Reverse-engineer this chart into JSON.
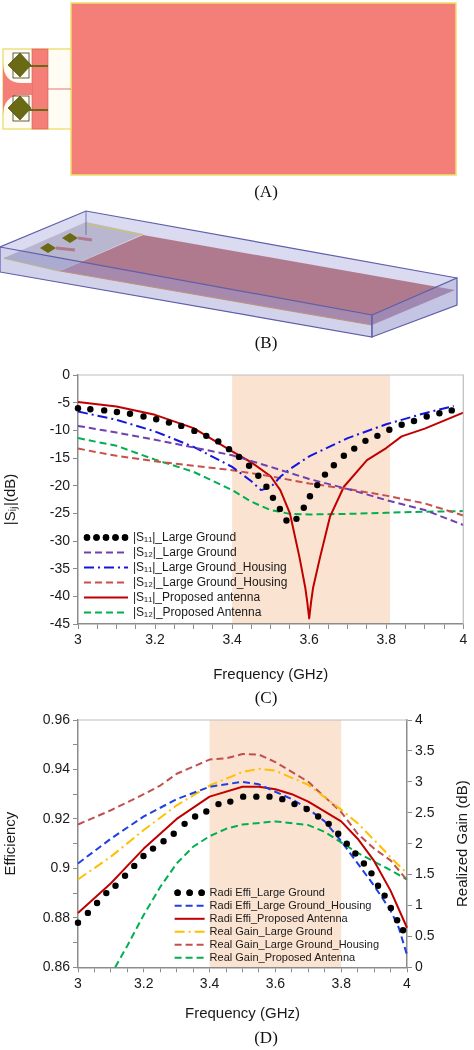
{
  "chart_data": [
    {
      "type": "other",
      "annotations": [
        "(A)"
      ]
    },
    {
      "type": "other",
      "annotations": [
        "(B)"
      ]
    },
    {
      "type": "line",
      "xlabel": "Frequency (GHz)",
      "ylabel": "|Sᵢⱼ|(dB)",
      "xlim": [
        3,
        4
      ],
      "xticks": [
        3,
        {
          "value": 3.05,
          "label": null
        },
        {
          "value": 3.1,
          "label": null
        },
        {
          "value": 3.15,
          "label": null
        },
        3.2,
        {
          "value": 3.25,
          "label": null
        },
        {
          "value": 3.3,
          "label": null
        },
        {
          "value": 3.35,
          "label": null
        },
        3.4,
        {
          "value": 3.45,
          "label": null
        },
        {
          "value": 3.5,
          "label": null
        },
        {
          "value": 3.55,
          "label": null
        },
        3.6,
        {
          "value": 3.65,
          "label": null
        },
        {
          "value": 3.7,
          "label": null
        },
        {
          "value": 3.75,
          "label": null
        },
        3.8,
        {
          "value": 3.85,
          "label": null
        },
        {
          "value": 3.9,
          "label": null
        },
        {
          "value": 3.95,
          "label": null
        },
        4
      ],
      "ylim": [
        -45,
        0
      ],
      "yticks": [
        -45,
        -40,
        -35,
        -30,
        -25,
        -20,
        -15,
        -10,
        -5,
        0
      ],
      "grid": false,
      "legend": "bottom left",
      "bands": [
        {
          "axis": "x",
          "from": 3.4,
          "to": 3.81,
          "color": "#fbe3d2"
        }
      ],
      "annotations": [
        "(C)"
      ],
      "series": [
        {
          "name": "|S₁₁|_Large Ground",
          "type": "scatter",
          "marker": "circle",
          "color": "#000000",
          "x": [
            3.0,
            3.032,
            3.068,
            3.101,
            3.135,
            3.17,
            3.203,
            3.236,
            3.268,
            3.302,
            3.333,
            3.364,
            3.392,
            3.418,
            3.444,
            3.468,
            3.489,
            3.506,
            3.524,
            3.541,
            3.567,
            3.586,
            3.602,
            3.621,
            3.641,
            3.664,
            3.69,
            3.717,
            3.746,
            3.777,
            3.808,
            3.84,
            3.872,
            3.905,
            3.938,
            3.97
          ],
          "values": [
            -6.0,
            -6.2,
            -6.4,
            -6.7,
            -7.0,
            -7.5,
            -8.0,
            -8.6,
            -9.2,
            -10.1,
            -11.0,
            -12.0,
            -13.4,
            -14.8,
            -16.4,
            -18.2,
            -20.2,
            -22.2,
            -24.2,
            -26.3,
            -26.0,
            -24.0,
            -21.9,
            -19.9,
            -18.0,
            -16.3,
            -14.6,
            -13.3,
            -11.9,
            -11.0,
            -9.9,
            -9.0,
            -8.3,
            -7.5,
            -6.9,
            -6.4
          ]
        },
        {
          "name": "|S₁₂|_Large Ground",
          "color": "#7040b0",
          "line_style": "dashed",
          "x": [
            3,
            3.1,
            3.2,
            3.3,
            3.4,
            3.5,
            3.6,
            3.7,
            3.8,
            3.9,
            4
          ],
          "values": [
            -9.2,
            -10.4,
            -11.7,
            -13.1,
            -14.5,
            -16.6,
            -18.8,
            -20.6,
            -22.6,
            -24.4,
            -27.1
          ]
        },
        {
          "name": "|S₁₁|_Large Ground_Housing",
          "color": "#1515e0",
          "line_style": "dashdot",
          "x": [
            3,
            3.1,
            3.2,
            3.3,
            3.4,
            3.45,
            3.475,
            3.5,
            3.525,
            3.55,
            3.6,
            3.7,
            3.8,
            3.9,
            3.975
          ],
          "values": [
            -6.6,
            -8.1,
            -10.2,
            -13.0,
            -16.6,
            -19.2,
            -20.8,
            -20.3,
            -18.4,
            -17.0,
            -14.7,
            -11.4,
            -8.9,
            -6.9,
            -5.6
          ]
        },
        {
          "name": "|S₁₂|_Large Ground_Housing",
          "color": "#c8504b",
          "line_style": "dashed",
          "x": [
            3,
            3.1,
            3.2,
            3.3,
            3.4,
            3.5,
            3.6,
            3.7,
            3.8,
            3.9,
            4
          ],
          "values": [
            -13.3,
            -14.6,
            -15.6,
            -16.4,
            -17.2,
            -18.3,
            -19.6,
            -20.6,
            -21.8,
            -23.2,
            -25.4
          ]
        },
        {
          "name": "|S₁₁|_Proposed antenna",
          "color": "#c00000",
          "line_style": "solid",
          "x": [
            3,
            3.1,
            3.2,
            3.3,
            3.4,
            3.45,
            3.5,
            3.525,
            3.55,
            3.575,
            3.59,
            3.595,
            3.6,
            3.605,
            3.61,
            3.628,
            3.654,
            3.69,
            3.75,
            3.8,
            3.84,
            3.9,
            4
          ],
          "values": [
            -4.9,
            -5.7,
            -7.2,
            -9.6,
            -13.8,
            -15.8,
            -18.3,
            -20.8,
            -25.0,
            -33.0,
            -38.5,
            -41.0,
            -44.0,
            -41.0,
            -38.5,
            -33.0,
            -25.6,
            -20.2,
            -15.4,
            -13.2,
            -11.1,
            -9.7,
            -6.8
          ]
        },
        {
          "name": "|S₁₂|_Proposed Antenna",
          "color": "#00b050",
          "line_style": "dashed",
          "x": [
            3,
            3.1,
            3.2,
            3.3,
            3.4,
            3.45,
            3.5,
            3.55,
            3.6,
            3.7,
            3.8,
            3.9,
            4
          ],
          "values": [
            -11.4,
            -12.8,
            -15.3,
            -17.5,
            -20.8,
            -22.9,
            -24.4,
            -25.1,
            -25.2,
            -25.1,
            -24.9,
            -24.7,
            -24.6
          ]
        }
      ]
    },
    {
      "type": "line",
      "xlabel": "Frequency (GHz)",
      "ylabel": "Efficiency",
      "y2label": "Realized Gain (dB)",
      "xlim": [
        3,
        4
      ],
      "xticks": [
        3,
        {
          "value": 3.05,
          "label": null
        },
        {
          "value": 3.1,
          "label": null
        },
        {
          "value": 3.15,
          "label": null
        },
        3.2,
        {
          "value": 3.25,
          "label": null
        },
        {
          "value": 3.3,
          "label": null
        },
        {
          "value": 3.35,
          "label": null
        },
        3.4,
        {
          "value": 3.45,
          "label": null
        },
        {
          "value": 3.5,
          "label": null
        },
        {
          "value": 3.55,
          "label": null
        },
        3.6,
        {
          "value": 3.65,
          "label": null
        },
        {
          "value": 3.7,
          "label": null
        },
        {
          "value": 3.75,
          "label": null
        },
        3.8,
        {
          "value": 3.85,
          "label": null
        },
        {
          "value": 3.9,
          "label": null
        },
        {
          "value": 3.95,
          "label": null
        },
        4
      ],
      "ylim": [
        0.86,
        0.96
      ],
      "yticks": [
        0.86,
        {
          "value": 0.87,
          "label": null
        },
        0.88,
        {
          "value": 0.89,
          "label": null
        },
        0.9,
        {
          "value": 0.91,
          "label": null
        },
        0.92,
        {
          "value": 0.93,
          "label": null
        },
        0.94,
        {
          "value": 0.95,
          "label": null
        },
        0.96
      ],
      "y2lim": [
        0,
        4
      ],
      "y2ticks": [
        0,
        0.5,
        1,
        1.5,
        2,
        2.5,
        3,
        3.5,
        4
      ],
      "grid": false,
      "legend": "bottom right",
      "bands": [
        {
          "axis": "x",
          "from": 3.4,
          "to": 3.8,
          "color": "#fbe3d2"
        }
      ],
      "annotations": [
        "(D)"
      ],
      "series": [
        {
          "name": "Radi Effi_Large Ground",
          "type": "scatter",
          "marker": "circle",
          "color": "#000000",
          "x": [
            3.0,
            3.03,
            3.058,
            3.086,
            3.114,
            3.143,
            3.171,
            3.199,
            3.228,
            3.26,
            3.291,
            3.324,
            3.356,
            3.39,
            3.427,
            3.463,
            3.502,
            3.542,
            3.582,
            3.621,
            3.658,
            3.695,
            3.73,
            3.762,
            3.791,
            3.817,
            3.843,
            3.869,
            3.892,
            3.912,
            3.932,
            3.951,
            3.97,
            3.988
          ],
          "values": [
            0.878,
            0.882,
            0.886,
            0.89,
            0.893,
            0.897,
            0.901,
            0.905,
            0.908,
            0.911,
            0.914,
            0.918,
            0.921,
            0.923,
            0.926,
            0.927,
            0.929,
            0.929,
            0.929,
            0.928,
            0.926,
            0.924,
            0.921,
            0.918,
            0.914,
            0.91,
            0.906,
            0.902,
            0.898,
            0.893,
            0.889,
            0.884,
            0.879,
            0.875
          ]
        },
        {
          "name": "Radi Effi_Large Ground_Housing",
          "color": "#1f3fe0",
          "line_style": "dashed",
          "x": [
            3,
            3.1,
            3.2,
            3.3,
            3.4,
            3.5,
            3.55,
            3.6,
            3.65,
            3.7,
            3.75,
            3.8,
            3.85,
            3.9,
            3.95,
            3.975,
            4
          ],
          "values": [
            0.902,
            0.912,
            0.921,
            0.928,
            0.933,
            0.935,
            0.934,
            0.931,
            0.928,
            0.924,
            0.919,
            0.911,
            0.902,
            0.893,
            0.883,
            0.876,
            0.865
          ]
        },
        {
          "name": "Radi Effi_Proposed Antenna",
          "color": "#c00000",
          "line_style": "solid",
          "x": [
            3,
            3.1,
            3.15,
            3.2,
            3.3,
            3.4,
            3.5,
            3.55,
            3.6,
            3.65,
            3.7,
            3.8,
            3.85,
            3.9,
            3.95,
            4
          ],
          "values": [
            0.882,
            0.894,
            0.901,
            0.908,
            0.92,
            0.929,
            0.933,
            0.933,
            0.932,
            0.93,
            0.927,
            0.919,
            0.912,
            0.903,
            0.891,
            0.876
          ]
        },
        {
          "name": "Real Gain_Large Ground",
          "color": "#ffc000",
          "line_style": "dashdot",
          "axis": "y2",
          "x": [
            3,
            3.1,
            3.2,
            3.3,
            3.4,
            3.5,
            3.55,
            3.6,
            3.7,
            3.8,
            3.85,
            3.9,
            3.95,
            4
          ],
          "values": [
            1.42,
            1.79,
            2.22,
            2.62,
            2.94,
            3.16,
            3.21,
            3.18,
            2.95,
            2.55,
            2.33,
            2.06,
            1.78,
            1.52
          ]
        },
        {
          "name": "Real Gain_Large Ground_Housing",
          "color": "#c0504d",
          "line_style": "dashed",
          "axis": "y2",
          "x": [
            3,
            3.1,
            3.2,
            3.25,
            3.3,
            3.4,
            3.45,
            3.5,
            3.55,
            3.6,
            3.7,
            3.8,
            3.85,
            3.9,
            3.95,
            4
          ],
          "values": [
            2.31,
            2.54,
            2.8,
            2.94,
            3.13,
            3.36,
            3.38,
            3.45,
            3.44,
            3.32,
            3.0,
            2.51,
            2.16,
            1.92,
            1.73,
            1.41
          ]
        },
        {
          "name": "Real Gain_Proposed Antenna",
          "color": "#00b050",
          "line_style": "dashed",
          "axis": "y2",
          "x": [
            3.113,
            3.15,
            3.2,
            3.25,
            3.3,
            3.35,
            3.4,
            3.45,
            3.5,
            3.6,
            3.7,
            3.75,
            3.8,
            3.85,
            3.9,
            3.95,
            4
          ],
          "values": [
            0,
            0.35,
            0.85,
            1.3,
            1.68,
            1.95,
            2.12,
            2.24,
            2.31,
            2.36,
            2.3,
            2.19,
            2.02,
            1.85,
            1.71,
            1.57,
            1.42
          ]
        }
      ]
    }
  ]
}
